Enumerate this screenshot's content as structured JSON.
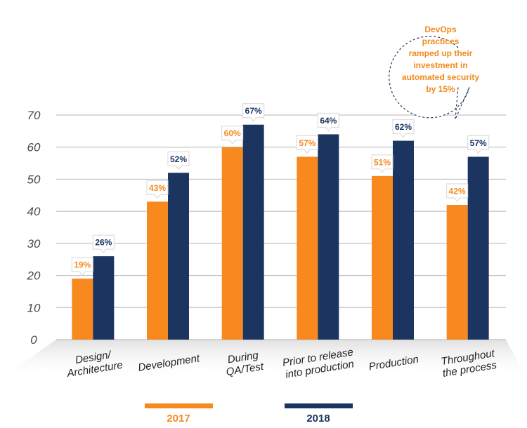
{
  "colors": {
    "s2017": "#f7891f",
    "s2018": "#1c3560",
    "grid": "#b5b5b5",
    "callout_text": "#f28a1e"
  },
  "callout": {
    "lines": [
      "DevOps",
      "practices",
      "ramped up their",
      "investment in",
      "automated security",
      "by 15%"
    ]
  },
  "legend": {
    "items": [
      {
        "label": "2017",
        "color": "#f7891f"
      },
      {
        "label": "2018",
        "color": "#1c3560"
      }
    ]
  },
  "chart_data": {
    "type": "bar",
    "categories": [
      [
        "Design/",
        "Architecture"
      ],
      [
        "Development"
      ],
      [
        "During",
        "QA/Test"
      ],
      [
        "Prior to release",
        "into production"
      ],
      [
        "Production"
      ],
      [
        "Throughout",
        "the process"
      ]
    ],
    "series": [
      {
        "name": "2017",
        "values": [
          19,
          43,
          60,
          57,
          51,
          42
        ],
        "labels": [
          "19%",
          "43%",
          "60%",
          "57%",
          "51%",
          "42%"
        ]
      },
      {
        "name": "2018",
        "values": [
          26,
          52,
          67,
          64,
          62,
          57
        ],
        "labels": [
          "26%",
          "52%",
          "67%",
          "64%",
          "62%",
          "57%"
        ]
      }
    ],
    "yticks": [
      0,
      10,
      20,
      30,
      40,
      50,
      60,
      70
    ],
    "ylim": [
      0,
      70
    ],
    "grid": true,
    "legend_position": "bottom"
  }
}
